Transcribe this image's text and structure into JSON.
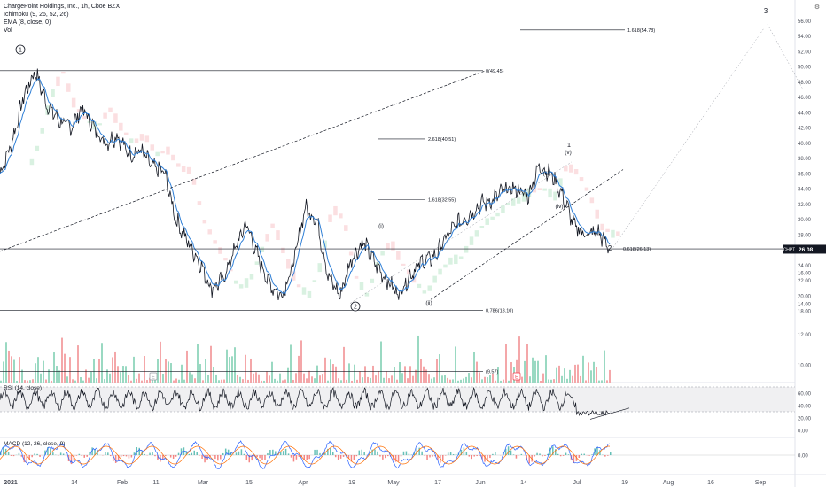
{
  "header": {
    "title": "ChargePoint Holdings, Inc., 1h, Cboe BZX",
    "indicators": [
      "Ichimoku (9, 26, 52, 26)",
      "EMA (8, close, 0)",
      "Vol"
    ]
  },
  "price_tag": {
    "symbol": "CHPT",
    "value": "26.08",
    "bg_color": "#131722"
  },
  "wave_labels": [
    "1",
    "2",
    "3",
    "(i)",
    "(ii)",
    "(iii)",
    "(iv)",
    "(v)",
    "1",
    "2"
  ],
  "fib_labels": [
    "1.618(54.78)",
    "0(49.45)",
    "2.618(40.51)",
    "1.618(32.55)",
    "0.618(26.13)",
    "0.786(18.10)",
    "(9.57)"
  ],
  "rsi_label": "RSI (14, close)",
  "macd_label": "MACD (12, 26, close, 9)",
  "event_markers": [
    "E",
    "E"
  ],
  "chart_data": [
    {
      "type": "line",
      "title": "ChargePoint Holdings, Inc., 1h, Cboe BZX",
      "price_axis_ticks": [
        "56.00",
        "54.00",
        "52.00",
        "50.00",
        "48.00",
        "46.00",
        "44.00",
        "42.00",
        "40.00",
        "38.00",
        "36.00",
        "34.00",
        "32.00",
        "30.00",
        "28.00",
        "26.00",
        "24.00",
        "22.00",
        "20.00",
        "18.00"
      ],
      "ylim": [
        17,
        57
      ],
      "x_tick_labels": [
        "2021",
        "14",
        "Feb",
        "11",
        "Mar",
        "15",
        "Apr",
        "19",
        "May",
        "17",
        "Jun",
        "14",
        "Jul",
        "19",
        "Aug",
        "16",
        "Sep"
      ],
      "series": [
        {
          "values": [
            36,
            40,
            46,
            49.4,
            45,
            43,
            42,
            44.5,
            42,
            40,
            41,
            38.5,
            39,
            36.8,
            36.2,
            30,
            27,
            24.5,
            21,
            22,
            26,
            29.5,
            25,
            21.5,
            20,
            24,
            31.5,
            30,
            22.5,
            20,
            25,
            27,
            24.2,
            22,
            20.2,
            22.8,
            24.5,
            25,
            27.5,
            29.5,
            30.5,
            32,
            32.5,
            33.8,
            34,
            33,
            37,
            36,
            33,
            29,
            28,
            28.3,
            26.08
          ]
        }
      ],
      "fib_levels": [
        {
          "label": "1.618(54.78)",
          "value": 54.78
        },
        {
          "label": "0(49.45)",
          "value": 49.45
        },
        {
          "label": "2.618(40.51)",
          "value": 40.51
        },
        {
          "label": "1.618(32.55)",
          "value": 32.55
        },
        {
          "label": "0.618(26.13)",
          "value": 26.13
        },
        {
          "label": "0.786(18.10)",
          "value": 18.1
        }
      ],
      "last_price": 26.08
    },
    {
      "type": "bar",
      "title": "",
      "y_ticks": [
        "16.00",
        "14.00",
        "12.00",
        "10.00"
      ],
      "ylim": [
        8,
        17
      ],
      "level_label": "(9.57)",
      "level_value": 9.57
    },
    {
      "type": "line",
      "title": "RSI (14, close)",
      "y_ticks": [
        "60.00",
        "40.00",
        "20.00",
        "0.00"
      ],
      "ylim": [
        0,
        75
      ],
      "band": [
        30,
        70
      ]
    },
    {
      "type": "line",
      "title": "MACD (12, 26, close, 9)",
      "y_ticks": [
        "0.00"
      ],
      "ylim": [
        -1,
        1
      ]
    }
  ]
}
